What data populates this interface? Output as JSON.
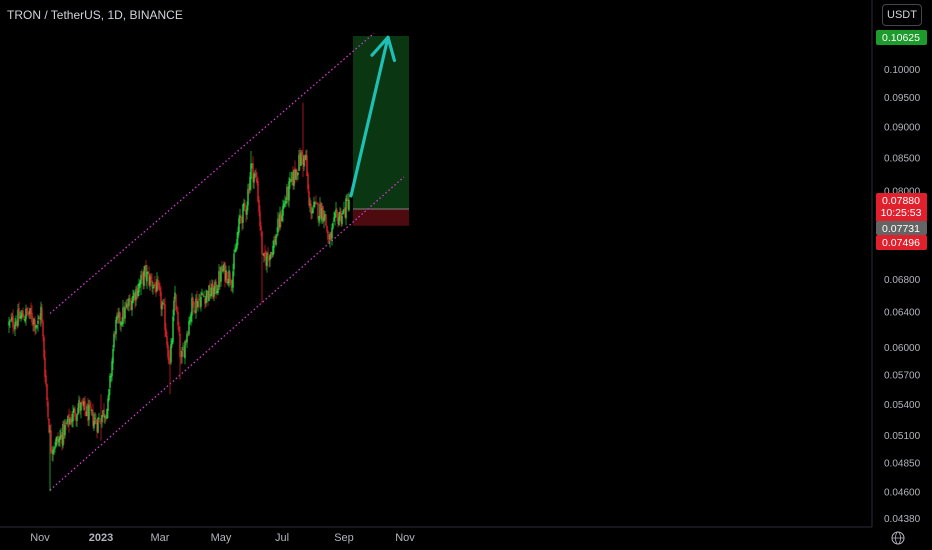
{
  "header": {
    "title": "TRON / TetherUS, 1D, BINANCE",
    "currency_button": "USDT"
  },
  "colors": {
    "background": "#000000",
    "up_candle": "#26d63f",
    "down_candle": "#e0202c",
    "channel": "#d63ad6",
    "arrow": "#1ebfb4",
    "target_zone": "#0a3612",
    "stop_zone": "#4d0b10",
    "axis_text": "#b2b5be"
  },
  "chart_data": {
    "type": "candlestick",
    "title": "TRON / TetherUS, 1D, BINANCE",
    "y_axis": {
      "scale": "log",
      "ticks": [
        "0.10000",
        "0.09500",
        "0.09000",
        "0.08500",
        "0.08000",
        "0.06800",
        "0.06400",
        "0.06000",
        "0.05700",
        "0.05400",
        "0.05100",
        "0.04850",
        "0.04600",
        "0.04380"
      ],
      "labels": {
        "target": "0.10625",
        "last_price": "0.07880",
        "countdown": "10:25:53",
        "entry": "0.07731",
        "stop": "0.07496"
      }
    },
    "x_axis": {
      "ticks": [
        "Nov",
        "2023",
        "Mar",
        "May",
        "Jul",
        "Sep",
        "Nov"
      ]
    },
    "price_path": [
      [
        "2022-10-01",
        0.0625
      ],
      [
        "2022-10-10",
        0.0632
      ],
      [
        "2022-10-20",
        0.0638
      ],
      [
        "2022-10-30",
        0.0625
      ],
      [
        "2022-11-02",
        0.0642
      ],
      [
        "2022-11-09",
        0.053
      ],
      [
        "2022-11-12",
        0.05
      ],
      [
        "2022-11-20",
        0.0505
      ],
      [
        "2022-12-01",
        0.0525
      ],
      [
        "2022-12-10",
        0.0538
      ],
      [
        "2022-12-20",
        0.053
      ],
      [
        "2022-12-28",
        0.0522
      ],
      [
        "2023-01-08",
        0.0538
      ],
      [
        "2023-01-15",
        0.0622
      ],
      [
        "2023-01-25",
        0.064
      ],
      [
        "2023-02-05",
        0.0665
      ],
      [
        "2023-02-14",
        0.0686
      ],
      [
        "2023-02-26",
        0.0668
      ],
      [
        "2023-03-05",
        0.0637
      ],
      [
        "2023-03-11",
        0.0578
      ],
      [
        "2023-03-16",
        0.0662
      ],
      [
        "2023-03-22",
        0.0582
      ],
      [
        "2023-04-02",
        0.0648
      ],
      [
        "2023-04-15",
        0.066
      ],
      [
        "2023-04-25",
        0.0665
      ],
      [
        "2023-05-02",
        0.069
      ],
      [
        "2023-05-12",
        0.0682
      ],
      [
        "2023-05-20",
        0.076
      ],
      [
        "2023-05-26",
        0.0775
      ],
      [
        "2023-05-31",
        0.0835
      ],
      [
        "2023-06-06",
        0.0812
      ],
      [
        "2023-06-12",
        0.07
      ],
      [
        "2023-06-22",
        0.072
      ],
      [
        "2023-07-02",
        0.0775
      ],
      [
        "2023-07-10",
        0.081
      ],
      [
        "2023-07-20",
        0.085
      ],
      [
        "2023-07-25",
        0.0845
      ],
      [
        "2023-07-28",
        0.0775
      ],
      [
        "2023-08-12",
        0.077
      ],
      [
        "2023-08-17",
        0.0725
      ],
      [
        "2023-08-24",
        0.076
      ],
      [
        "2023-09-01",
        0.0768
      ],
      [
        "2023-09-06",
        0.0788
      ]
    ],
    "spikes": [
      {
        "date": "2022-11-11",
        "high": 0.0515,
        "low": 0.046
      },
      {
        "date": "2023-01-01",
        "high": 0.055,
        "low": 0.0505
      },
      {
        "date": "2023-02-10",
        "high": 0.069,
        "low": 0.066
      },
      {
        "date": "2023-03-11",
        "high": 0.06,
        "low": 0.055
      },
      {
        "date": "2023-03-21",
        "high": 0.06,
        "low": 0.0565
      },
      {
        "date": "2023-05-31",
        "high": 0.086,
        "low": 0.08
      },
      {
        "date": "2023-06-11",
        "high": 0.072,
        "low": 0.065
      },
      {
        "date": "2023-07-22",
        "high": 0.094,
        "low": 0.082
      },
      {
        "date": "2023-08-18",
        "high": 0.0735,
        "low": 0.072
      }
    ],
    "channel": {
      "lower": [
        [
          "2022-11-11",
          0.0461
        ],
        [
          "2023-10-31",
          0.082
        ]
      ],
      "upper": [
        [
          "2022-11-11",
          0.0638
        ],
        [
          "2023-10-01",
          0.1068
        ]
      ]
    },
    "position": {
      "start": "2023-09-10",
      "end": "2023-11-05",
      "entry": 0.07731,
      "target": 0.10625,
      "stop": 0.07496
    },
    "arrow": {
      "from": [
        "2023-09-08",
        0.0792
      ],
      "to": [
        "2023-10-15",
        0.106
      ]
    },
    "grid": false,
    "legend": "none"
  }
}
